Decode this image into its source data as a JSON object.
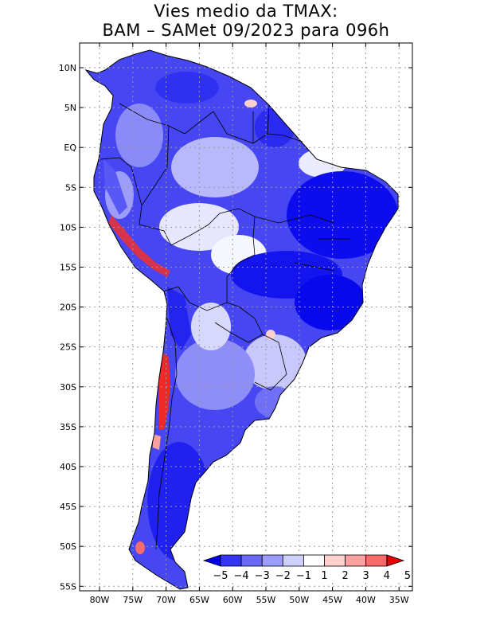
{
  "title": {
    "line1": "Vies medio da TMAX:",
    "line2": "BAM – SAMet 09/2023  para 096h"
  },
  "axes": {
    "lat_labels": [
      "10N",
      "5N",
      "EQ",
      "5S",
      "10S",
      "15S",
      "20S",
      "25S",
      "30S",
      "35S",
      "40S",
      "45S",
      "50S",
      "55S"
    ],
    "lon_labels": [
      "80W",
      "75W",
      "70W",
      "65W",
      "60W",
      "55W",
      "50W",
      "45W",
      "40W",
      "35W"
    ]
  },
  "colorbar": {
    "labels": [
      "−5",
      "−4",
      "−3",
      "−2",
      "−1",
      "1",
      "2",
      "3",
      "4",
      "5"
    ],
    "colors": [
      "#0000e6",
      "#3535f5",
      "#6a6af8",
      "#9c9cfa",
      "#cfcffd",
      "#ffffff",
      "#fdd0d0",
      "#fba0a0",
      "#f86a6a",
      "#e60000"
    ]
  },
  "colors": {
    "strong_cold": "#1010ee",
    "mid_cold": "#5a5af5",
    "light_cold": "#b4b4fa",
    "warm": "#f23030",
    "land_outline": "#000000",
    "grid": "#9a9a9a"
  }
}
